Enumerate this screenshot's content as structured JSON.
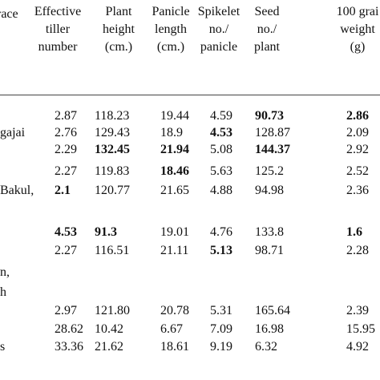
{
  "table": {
    "stub_header": "race",
    "columns": [
      [
        "Effective",
        "tiller",
        "number"
      ],
      [
        "Plant",
        "height",
        "(cm.)"
      ],
      [
        "Panicle",
        "length",
        "(cm.)"
      ],
      [
        "Spikelet",
        "no./",
        "panicle"
      ],
      [
        "Seed",
        "no./",
        "plant"
      ],
      [
        "100 grai",
        "weight",
        "(g)"
      ]
    ],
    "rows": [
      {
        "values": [
          "2.87",
          "118.23",
          "19.44",
          "4.59",
          "90.73",
          "2.86"
        ],
        "bold": [
          4,
          5
        ]
      },
      {
        "label": "gajai",
        "values": [
          "2.76",
          "129.43",
          "18.9",
          "4.53",
          "128.87",
          "2.09"
        ],
        "bold": [
          3
        ]
      },
      {
        "values": [
          "2.29",
          "132.45",
          "21.94",
          "5.08",
          "144.37",
          "2.92"
        ],
        "bold": [
          1,
          2,
          4
        ]
      },
      {
        "values": [
          "2.27",
          "119.83",
          "18.46",
          "5.63",
          "125.2",
          "2.52"
        ],
        "bold": [
          2
        ]
      },
      {
        "label": "Bakul,",
        "values": [
          "2.1",
          "120.77",
          "21.65",
          "4.88",
          "94.98",
          "2.36"
        ],
        "bold": [
          0
        ]
      },
      {
        "values": [
          "4.53",
          "91.3",
          "19.01",
          "4.76",
          "133.8",
          "1.6"
        ],
        "bold": [
          0,
          1,
          5
        ]
      },
      {
        "values": [
          "2.27",
          "116.51",
          "21.11",
          "5.13",
          "98.71",
          "2.28"
        ],
        "bold": [
          3
        ]
      },
      {
        "label": "n,"
      },
      {
        "label": "h"
      },
      {
        "values": [
          "2.97",
          "121.80",
          "20.78",
          "5.31",
          "165.64",
          "2.39"
        ]
      },
      {
        "values": [
          "28.62",
          "10.42",
          "6.67",
          "7.09",
          "16.98",
          "15.95"
        ]
      },
      {
        "label": "s",
        "values": [
          "33.36",
          "21.62",
          "18.61",
          "9.19",
          "6.32",
          "4.92"
        ]
      }
    ]
  }
}
